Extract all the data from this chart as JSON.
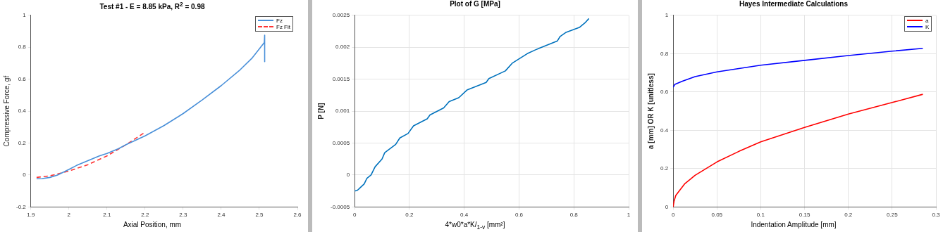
{
  "chart_data": [
    {
      "type": "line",
      "title": "Test #1 - E = 8.85 kPa, R$^{2}$ = 0.98",
      "xlabel": "Axial Position, mm",
      "ylabel": "Compressive Force, gf",
      "xlim": [
        1.9,
        2.6
      ],
      "xticks": [
        1.9,
        2,
        2.1,
        2.2,
        2.3,
        2.4,
        2.5,
        2.6
      ],
      "ylim": [
        -0.2,
        1
      ],
      "yticks": [
        -0.2,
        0,
        0.2,
        0.4,
        0.6,
        0.8,
        1
      ],
      "grid": false,
      "legend": "top right",
      "series": [
        {
          "name": "Fz",
          "color": "#4a90d9",
          "x": [
            1.915,
            1.93,
            1.95,
            1.97,
            2.0,
            2.02,
            2.05,
            2.08,
            2.1,
            2.13,
            2.15,
            2.2,
            2.25,
            2.3,
            2.35,
            2.4,
            2.45,
            2.48,
            2.5,
            2.513,
            2.514,
            2.514
          ],
          "values": [
            -0.023,
            -0.022,
            -0.015,
            0.0,
            0.035,
            0.06,
            0.09,
            0.12,
            0.135,
            0.165,
            0.19,
            0.245,
            0.31,
            0.385,
            0.47,
            0.56,
            0.66,
            0.73,
            0.79,
            0.83,
            0.876,
            0.71
          ]
        },
        {
          "name": "Fz Fit",
          "color": "#ff3333",
          "line_style": "dashed",
          "x": [
            1.915,
            1.95,
            2.0,
            2.05,
            2.1,
            2.15,
            2.2
          ],
          "values": [
            -0.015,
            -0.005,
            0.025,
            0.065,
            0.12,
            0.19,
            0.268
          ]
        }
      ]
    },
    {
      "type": "line",
      "title": "Plot of G [MPa]",
      "xlabel": "4*w0*a*K/$_{1-v}$ [mm²]",
      "ylabel": "P [N]",
      "xlim": [
        0,
        1
      ],
      "xticks": [
        0,
        0.2,
        0.4,
        0.6,
        0.8,
        1
      ],
      "ylim": [
        -0.0005,
        0.0025
      ],
      "yticks": [
        -0.0005,
        0,
        0.0005,
        0.001,
        0.0015,
        0.002,
        0.0025
      ],
      "grid": true,
      "series": [
        {
          "color": "#0072bd",
          "x": [
            0,
            0.01,
            0.02,
            0.035,
            0.045,
            0.06,
            0.075,
            0.1,
            0.11,
            0.15,
            0.165,
            0.195,
            0.215,
            0.265,
            0.275,
            0.325,
            0.345,
            0.38,
            0.41,
            0.48,
            0.49,
            0.55,
            0.575,
            0.63,
            0.66,
            0.74,
            0.75,
            0.77,
            0.82,
            0.84,
            0.855
          ],
          "values": [
            -0.00025,
            -0.00024,
            -0.0002,
            -0.00014,
            -5e-05,
            0,
            0.00013,
            0.00025,
            0.00035,
            0.00048,
            0.00058,
            0.00065,
            0.00077,
            0.00088,
            0.00094,
            0.00105,
            0.00115,
            0.00121,
            0.00133,
            0.00145,
            0.00151,
            0.00163,
            0.00175,
            0.0019,
            0.00196,
            0.0021,
            0.00217,
            0.00223,
            0.00231,
            0.00238,
            0.00245
          ]
        }
      ]
    },
    {
      "type": "line",
      "title": "Hayes Intermediate Calculations",
      "xlabel": "Indentation Amplitude [mm]",
      "ylabel": "a [mm] OR K [unitless]",
      "xlim": [
        0,
        0.3
      ],
      "xticks": [
        0,
        0.05,
        0.1,
        0.15,
        0.2,
        0.25,
        0.3
      ],
      "ylim": [
        0,
        1
      ],
      "yticks": [
        0,
        0.2,
        0.4,
        0.6,
        0.8,
        1
      ],
      "grid": true,
      "legend": "top right",
      "series": [
        {
          "name": "a",
          "color": "#ff0000",
          "x": [
            0,
            0.001,
            0.003,
            0.013,
            0.025,
            0.05,
            0.075,
            0.1,
            0.15,
            0.2,
            0.25,
            0.285
          ],
          "values": [
            0,
            0.03,
            0.06,
            0.12,
            0.165,
            0.235,
            0.29,
            0.34,
            0.415,
            0.485,
            0.545,
            0.588
          ]
        },
        {
          "name": "K",
          "color": "#0000ff",
          "x": [
            0,
            0.002,
            0.01,
            0.025,
            0.05,
            0.1,
            0.15,
            0.2,
            0.25,
            0.285
          ],
          "values": [
            0.625,
            0.64,
            0.655,
            0.68,
            0.705,
            0.74,
            0.765,
            0.79,
            0.813,
            0.828
          ]
        }
      ]
    }
  ]
}
